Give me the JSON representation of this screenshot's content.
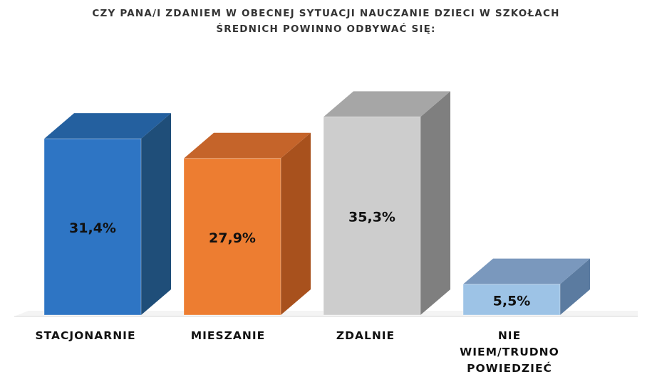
{
  "chart_data": {
    "type": "bar",
    "title_lines": [
      "CZY PANA/I ZDANIEM W OBECNEJ SYTUACJI NAUCZANIE DZIECI W SZKOŁACH",
      "ŚREDNICH POWINNO ODBYWAĆ SIĘ:"
    ],
    "categories": [
      "STACJONARNIE",
      "MIESZANIE",
      "ZDALNIE",
      "NIE WIEM/TRUDNO POWIEDZIEĆ"
    ],
    "category_lines": [
      [
        "STACJONARNIE"
      ],
      [
        "MIESZANIE"
      ],
      [
        "ZDALNIE"
      ],
      [
        "NIE",
        "WIEM/TRUDNO",
        "POWIEDZIEĆ"
      ]
    ],
    "values": [
      31.4,
      27.9,
      35.3,
      5.5
    ],
    "value_labels": [
      "31,4%",
      "27,9%",
      "35,3%",
      "5,5%"
    ],
    "colors": {
      "front": [
        "#2E75C4",
        "#ED7D31",
        "#CDCDCD",
        "#9DC3E6"
      ],
      "side": [
        "#1F4E79",
        "#A8511D",
        "#7F7F7F",
        "#5B7BA0"
      ],
      "top": [
        "#24609F",
        "#C5642A",
        "#A6A6A6",
        "#7A98BD"
      ]
    },
    "ylim": [
      0,
      38
    ],
    "grid": false,
    "legend": "none"
  }
}
